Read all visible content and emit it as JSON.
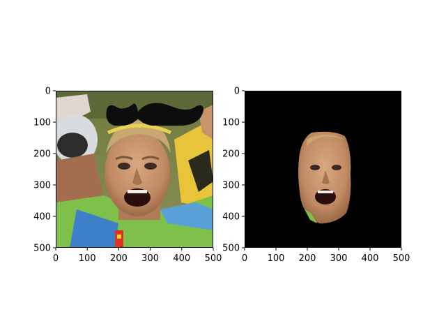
{
  "chart_data": [
    {
      "type": "image",
      "title": "",
      "xlabel": "",
      "ylabel": "",
      "xlim": [
        0,
        500
      ],
      "ylim": [
        500,
        0
      ],
      "xticks": [
        0,
        100,
        200,
        300,
        400,
        500
      ],
      "yticks": [
        0,
        100,
        200,
        300,
        400,
        500
      ],
      "content": "photo of a cyclist's face with a black mustache overlay on the forehead",
      "overlay": "mustache",
      "colors": {
        "sky": "#6f7a3e",
        "jersey_green": "#7fc04a",
        "skin": "#c9956e",
        "hair": "#c8a870",
        "mustache": "#0d0d0d"
      }
    },
    {
      "type": "image",
      "title": "",
      "xlabel": "",
      "ylabel": "",
      "xlim": [
        0,
        500
      ],
      "ylim": [
        500,
        0
      ],
      "xticks": [
        0,
        100,
        200,
        300,
        400,
        500
      ],
      "yticks": [
        0,
        100,
        200,
        300,
        400,
        500
      ],
      "content": "face segmented from the photo on a black background",
      "background": "#000000",
      "colors": {
        "skin": "#c9956e"
      }
    }
  ]
}
